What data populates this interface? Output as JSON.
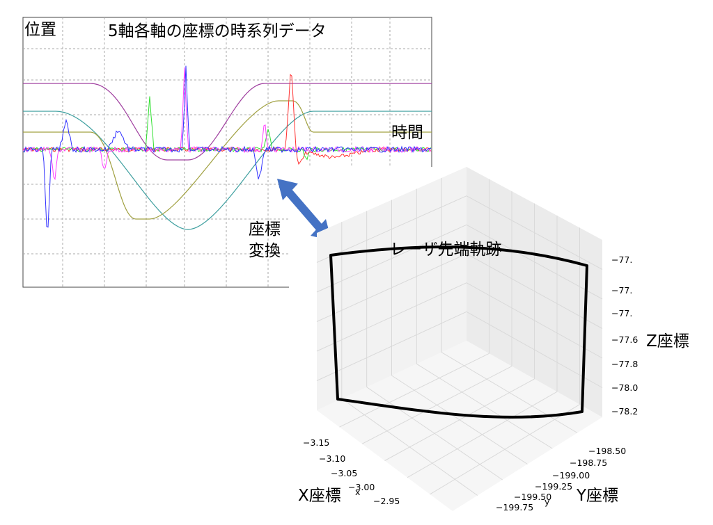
{
  "time_series_plot": {
    "title": "5軸各軸の座標の時系列データ",
    "y_label": "位置",
    "x_label": "時間"
  },
  "transform_label": {
    "line1": "座標",
    "line2": "変換"
  },
  "plot_3d": {
    "title": "レーザ先端軌跡",
    "z_label": "Z座標",
    "x_label": "X座標",
    "y_label": "Y座標",
    "x_axis_letter": "x",
    "y_axis_letter": "y",
    "z_ticks": [
      "−77.",
      "−77.",
      "−77.",
      "−77.6",
      "−77.8",
      "−78.0",
      "−78.2"
    ],
    "x_ticks": [
      "−3.15",
      "−3.10",
      "−3.05",
      "−3.00",
      "−2.95"
    ],
    "y_ticks": [
      "−198.50",
      "−198.75",
      "−199.00",
      "−199.25",
      "−199.50",
      "−199.75"
    ]
  }
}
